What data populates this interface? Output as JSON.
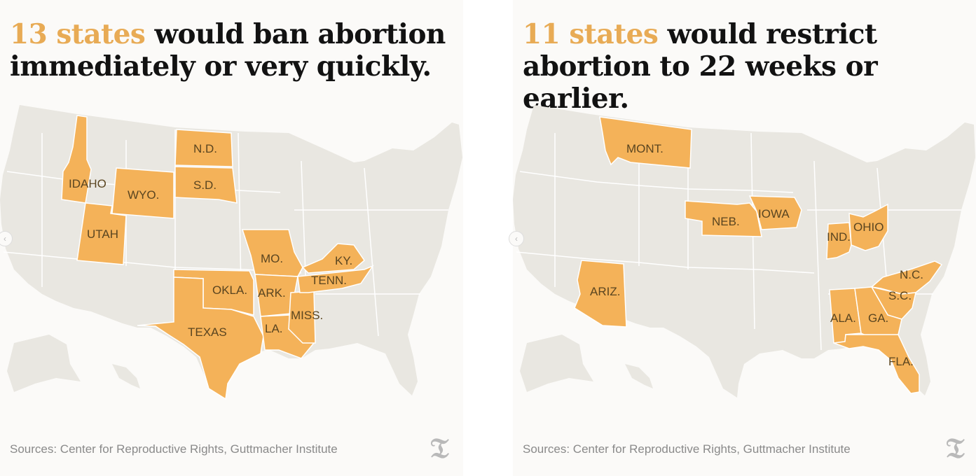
{
  "left": {
    "title_highlight": "13 states",
    "title_rest": " would ban abortion immediately or very quickly.",
    "states": [
      {
        "abbr": "IDAHO",
        "status": "ban"
      },
      {
        "abbr": "WYO.",
        "status": "ban"
      },
      {
        "abbr": "UTAH",
        "status": "ban"
      },
      {
        "abbr": "N.D.",
        "status": "ban"
      },
      {
        "abbr": "S.D.",
        "status": "ban"
      },
      {
        "abbr": "TEXAS",
        "status": "ban"
      },
      {
        "abbr": "OKLA.",
        "status": "ban"
      },
      {
        "abbr": "MO.",
        "status": "ban"
      },
      {
        "abbr": "ARK.",
        "status": "ban"
      },
      {
        "abbr": "LA.",
        "status": "ban"
      },
      {
        "abbr": "MISS.",
        "status": "ban"
      },
      {
        "abbr": "TENN.",
        "status": "ban"
      },
      {
        "abbr": "KY.",
        "status": "ban"
      }
    ],
    "source": "Sources: Center for Reproductive Rights, Guttmacher Institute"
  },
  "right": {
    "title_highlight": "11 states",
    "title_rest": " would restrict abortion to 22 weeks or earlier.",
    "states": [
      {
        "abbr": "MONT.",
        "status": "restrict"
      },
      {
        "abbr": "NEB.",
        "status": "restrict"
      },
      {
        "abbr": "IOWA",
        "status": "restrict"
      },
      {
        "abbr": "IND.",
        "status": "restrict"
      },
      {
        "abbr": "OHIO",
        "status": "restrict"
      },
      {
        "abbr": "ARIZ.",
        "status": "restrict"
      },
      {
        "abbr": "N.C.",
        "status": "restrict"
      },
      {
        "abbr": "S.C.",
        "status": "restrict"
      },
      {
        "abbr": "ALA.",
        "status": "restrict"
      },
      {
        "abbr": "GA.",
        "status": "restrict"
      },
      {
        "abbr": "FLA.",
        "status": "restrict"
      }
    ],
    "source": "Sources: Center for Reproductive Rights, Guttmacher Institute"
  },
  "logo_glyph": "𝔗",
  "nav_glyph": "‹",
  "colors": {
    "highlight": "#f4b259",
    "highlight_text": "#e8ab55",
    "land": "#e9e7e1",
    "background": "#fbfaf8",
    "border": "#ffffff"
  }
}
